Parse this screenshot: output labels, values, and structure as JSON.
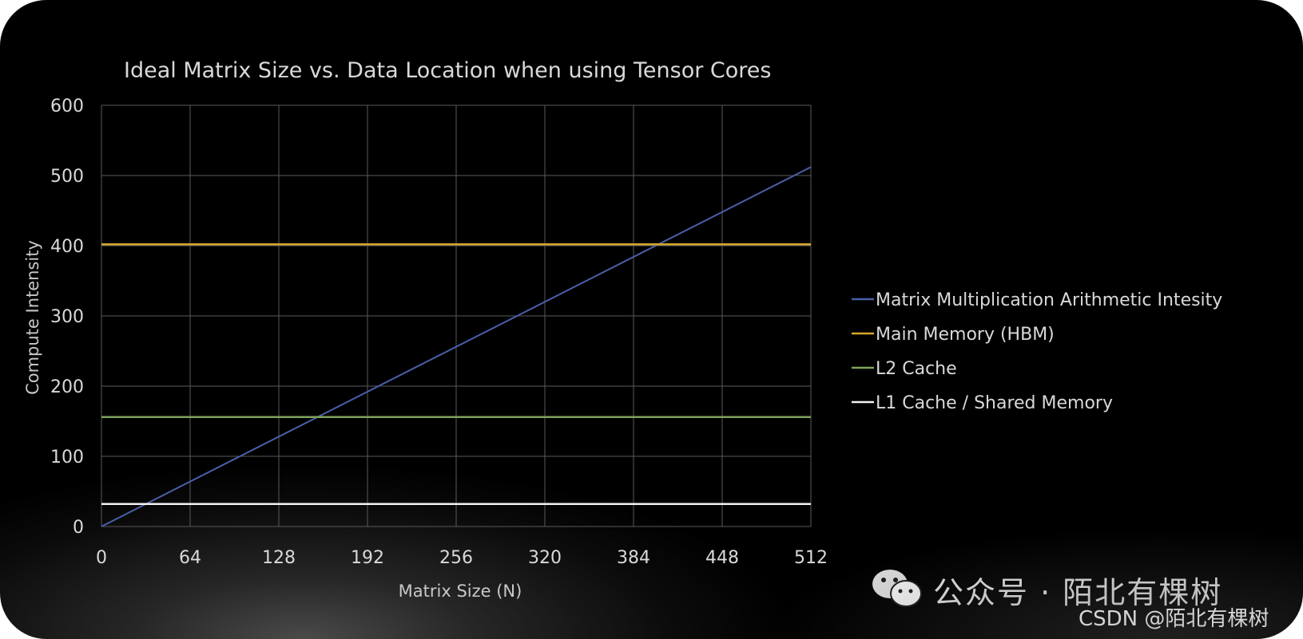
{
  "chart_data": {
    "type": "line",
    "title": "Ideal Matrix Size vs. Data Location when using Tensor Cores",
    "xlabel": "Matrix Size (N)",
    "ylabel": "Compute Intensity",
    "xlim": [
      0,
      512
    ],
    "ylim": [
      0,
      600
    ],
    "x_ticks": [
      "0",
      "64",
      "128",
      "192",
      "256",
      "320",
      "384",
      "448",
      "512"
    ],
    "y_ticks": [
      "0",
      "100",
      "200",
      "300",
      "400",
      "500",
      "600"
    ],
    "grid": true,
    "legend_position": "right",
    "series": [
      {
        "name": "Matrix Multiplication Arithmetic Intesity",
        "color": "#4a5fa8",
        "x": [
          0,
          512
        ],
        "y": [
          0,
          512
        ]
      },
      {
        "name": "Main Memory (HBM)",
        "color": "#d4a72c",
        "x": [
          0,
          512
        ],
        "y": [
          402,
          402
        ]
      },
      {
        "name": "L2 Cache",
        "color": "#7ea35a",
        "x": [
          0,
          512
        ],
        "y": [
          156,
          156
        ]
      },
      {
        "name": "L1 Cache / Shared Memory",
        "color": "#f2f2f2",
        "x": [
          0,
          512
        ],
        "y": [
          32,
          32
        ]
      }
    ]
  },
  "watermark": {
    "icon": "wechat-icon",
    "main": "公众号 · 陌北有棵树",
    "csdn": "CSDN @陌北有棵树"
  }
}
